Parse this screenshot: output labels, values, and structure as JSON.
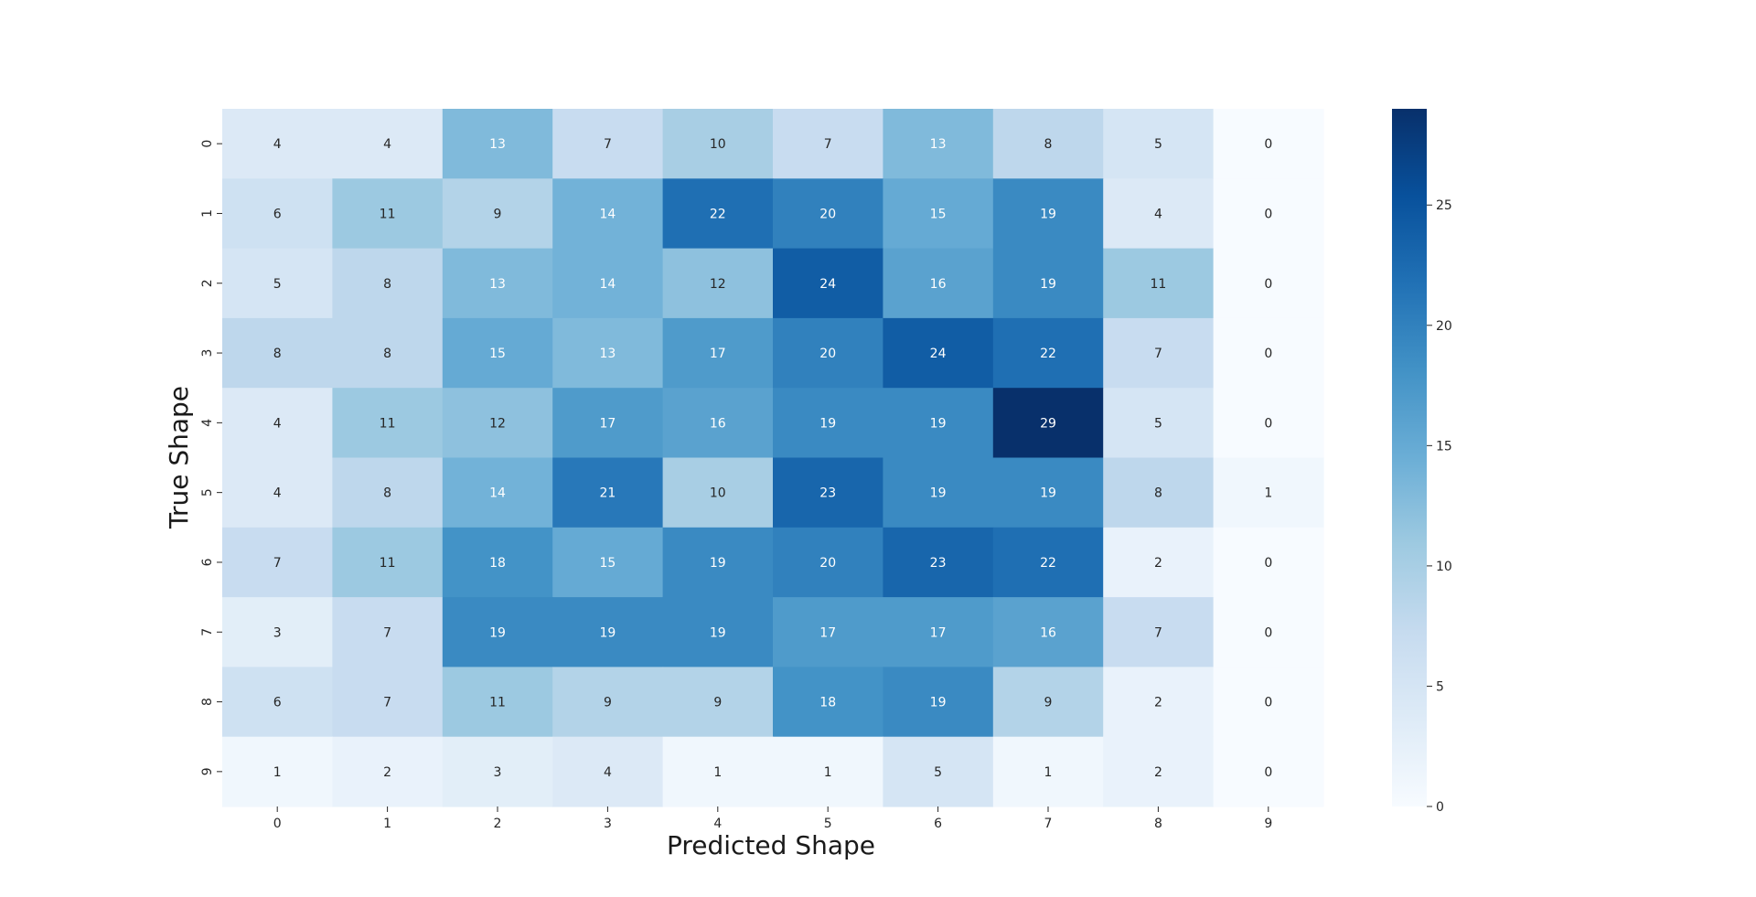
{
  "chart_data": {
    "type": "heatmap",
    "title": "",
    "xlabel": "Predicted Shape",
    "ylabel": "True Shape",
    "x_categories": [
      "0",
      "1",
      "2",
      "3",
      "4",
      "5",
      "6",
      "7",
      "8",
      "9"
    ],
    "y_categories": [
      "0",
      "1",
      "2",
      "3",
      "4",
      "5",
      "6",
      "7",
      "8",
      "9"
    ],
    "matrix": [
      [
        4,
        4,
        13,
        7,
        10,
        7,
        13,
        8,
        5,
        0
      ],
      [
        6,
        11,
        9,
        14,
        22,
        20,
        15,
        19,
        4,
        0
      ],
      [
        5,
        8,
        13,
        14,
        12,
        24,
        16,
        19,
        11,
        0
      ],
      [
        8,
        8,
        15,
        13,
        17,
        20,
        24,
        22,
        7,
        0
      ],
      [
        4,
        11,
        12,
        17,
        16,
        19,
        19,
        29,
        5,
        0
      ],
      [
        4,
        8,
        14,
        21,
        10,
        23,
        19,
        19,
        8,
        1
      ],
      [
        7,
        11,
        18,
        15,
        19,
        20,
        23,
        22,
        2,
        0
      ],
      [
        3,
        7,
        19,
        19,
        19,
        17,
        17,
        16,
        7,
        0
      ],
      [
        6,
        7,
        11,
        9,
        9,
        18,
        19,
        9,
        2,
        0
      ],
      [
        1,
        2,
        3,
        4,
        1,
        1,
        5,
        1,
        2,
        0
      ]
    ],
    "colorbar": {
      "colormap": "Blues",
      "vmin": 0,
      "vmax": 29,
      "ticks": [
        "0",
        "5",
        "10",
        "15",
        "20",
        "25"
      ]
    },
    "grid": false,
    "annotations": true
  }
}
